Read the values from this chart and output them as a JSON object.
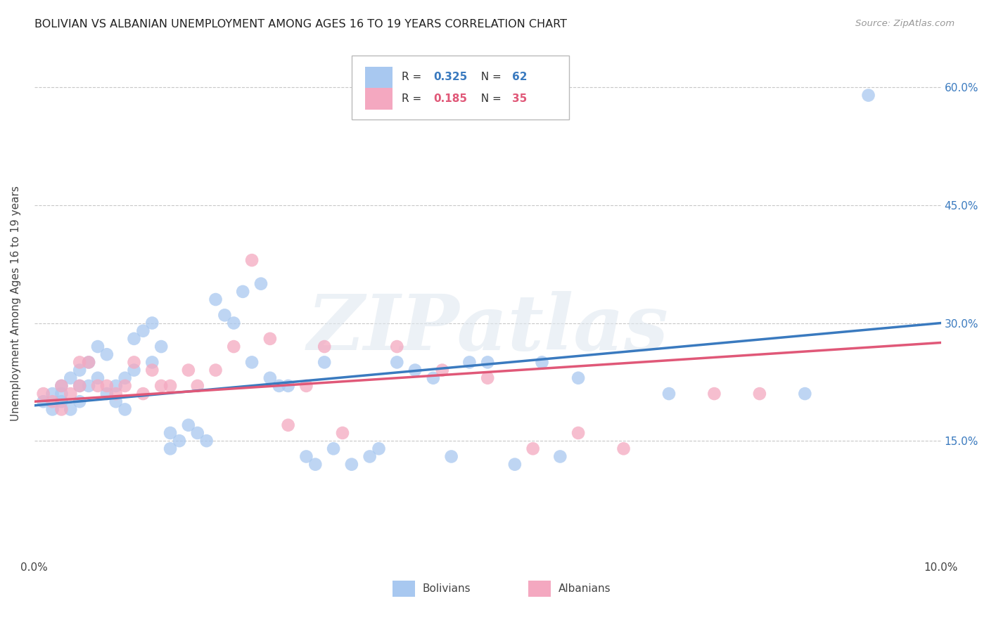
{
  "title": "BOLIVIAN VS ALBANIAN UNEMPLOYMENT AMONG AGES 16 TO 19 YEARS CORRELATION CHART",
  "source": "Source: ZipAtlas.com",
  "ylabel": "Unemployment Among Ages 16 to 19 years",
  "xlim": [
    0.0,
    0.1
  ],
  "ylim": [
    0.0,
    0.65
  ],
  "ytick_labels_right": [
    "15.0%",
    "30.0%",
    "45.0%",
    "60.0%"
  ],
  "ytick_values_right": [
    0.15,
    0.3,
    0.45,
    0.6
  ],
  "bolivian_color": "#a8c8f0",
  "albanian_color": "#f4a8c0",
  "bolivian_line_color": "#3a7abf",
  "albanian_line_color": "#e05878",
  "R_bolivian": 0.325,
  "N_bolivian": 62,
  "R_albanian": 0.185,
  "N_albanian": 35,
  "watermark": "ZIPatlas",
  "background_color": "#ffffff",
  "grid_color": "#c8c8c8",
  "bolivian_intercept": 0.195,
  "bolivian_slope": 1.05,
  "albanian_intercept": 0.2,
  "albanian_slope": 0.75,
  "bolivian_x": [
    0.001,
    0.002,
    0.002,
    0.003,
    0.003,
    0.003,
    0.004,
    0.004,
    0.005,
    0.005,
    0.005,
    0.006,
    0.006,
    0.007,
    0.007,
    0.008,
    0.008,
    0.009,
    0.009,
    0.01,
    0.01,
    0.011,
    0.011,
    0.012,
    0.013,
    0.013,
    0.014,
    0.015,
    0.015,
    0.016,
    0.017,
    0.018,
    0.019,
    0.02,
    0.021,
    0.022,
    0.023,
    0.024,
    0.025,
    0.026,
    0.027,
    0.028,
    0.03,
    0.031,
    0.032,
    0.033,
    0.035,
    0.037,
    0.038,
    0.04,
    0.042,
    0.044,
    0.046,
    0.048,
    0.05,
    0.053,
    0.056,
    0.058,
    0.06,
    0.07,
    0.085,
    0.092
  ],
  "bolivian_y": [
    0.2,
    0.19,
    0.21,
    0.22,
    0.21,
    0.2,
    0.23,
    0.19,
    0.24,
    0.22,
    0.2,
    0.25,
    0.22,
    0.27,
    0.23,
    0.21,
    0.26,
    0.22,
    0.2,
    0.23,
    0.19,
    0.28,
    0.24,
    0.29,
    0.3,
    0.25,
    0.27,
    0.14,
    0.16,
    0.15,
    0.17,
    0.16,
    0.15,
    0.33,
    0.31,
    0.3,
    0.34,
    0.25,
    0.35,
    0.23,
    0.22,
    0.22,
    0.13,
    0.12,
    0.25,
    0.14,
    0.12,
    0.13,
    0.14,
    0.25,
    0.24,
    0.23,
    0.13,
    0.25,
    0.25,
    0.12,
    0.25,
    0.13,
    0.23,
    0.21,
    0.21,
    0.59
  ],
  "albanian_x": [
    0.001,
    0.002,
    0.003,
    0.003,
    0.004,
    0.005,
    0.005,
    0.006,
    0.007,
    0.008,
    0.009,
    0.01,
    0.011,
    0.012,
    0.013,
    0.014,
    0.015,
    0.017,
    0.018,
    0.02,
    0.022,
    0.024,
    0.026,
    0.028,
    0.03,
    0.032,
    0.034,
    0.04,
    0.045,
    0.05,
    0.055,
    0.06,
    0.065,
    0.075,
    0.08
  ],
  "albanian_y": [
    0.21,
    0.2,
    0.22,
    0.19,
    0.21,
    0.25,
    0.22,
    0.25,
    0.22,
    0.22,
    0.21,
    0.22,
    0.25,
    0.21,
    0.24,
    0.22,
    0.22,
    0.24,
    0.22,
    0.24,
    0.27,
    0.38,
    0.28,
    0.17,
    0.22,
    0.27,
    0.16,
    0.27,
    0.24,
    0.23,
    0.14,
    0.16,
    0.14,
    0.21,
    0.21
  ]
}
